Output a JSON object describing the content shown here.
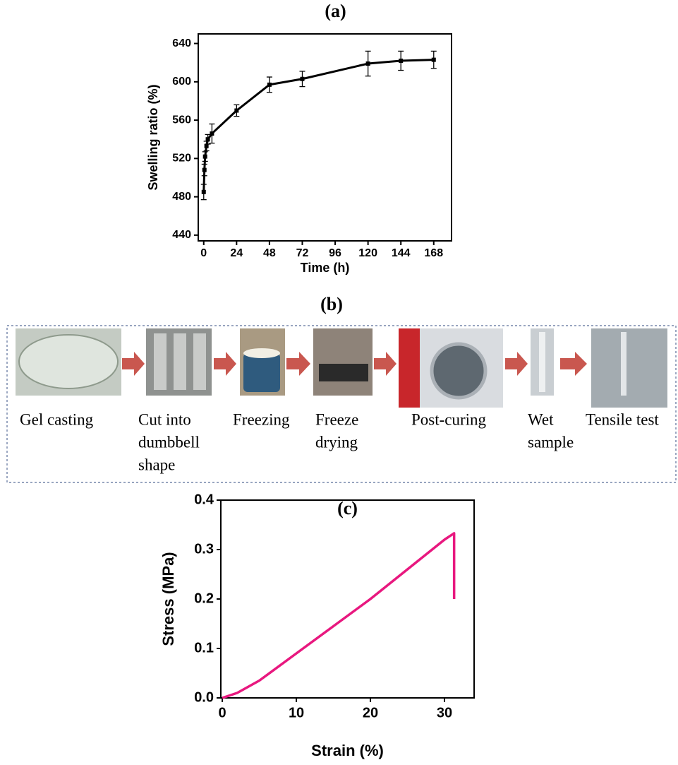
{
  "chart_data": [
    {
      "type": "line",
      "title": "(a)",
      "x_label": "Time (h)",
      "y_label": "Swelling ratio (%)",
      "x": [
        0,
        0.5,
        1,
        2,
        3,
        6,
        24,
        48,
        72,
        120,
        144,
        168
      ],
      "series": [
        {
          "color": "#000000",
          "values": [
            485,
            508,
            522,
            533,
            540,
            546,
            570,
            597,
            603,
            619,
            622,
            623
          ],
          "errors": [
            8,
            6,
            5,
            5,
            5,
            10,
            6,
            8,
            8,
            13,
            10,
            9
          ]
        }
      ],
      "xlim": [
        -4,
        181
      ],
      "ylim": [
        434,
        650
      ],
      "xticks": [
        0,
        24,
        48,
        72,
        96,
        120,
        144,
        168
      ],
      "yticks": [
        440,
        480,
        520,
        560,
        600,
        640
      ]
    },
    {
      "type": "line",
      "title": "(c)",
      "x_label": "Strain (%)",
      "y_label": "Stress (MPa)",
      "x": [
        0,
        2,
        5,
        10,
        15,
        20,
        25,
        30,
        31.3,
        31.3
      ],
      "series": [
        {
          "color": "#e8187f",
          "values": [
            0,
            0.01,
            0.035,
            0.09,
            0.145,
            0.2,
            0.26,
            0.32,
            0.333,
            0.2
          ]
        }
      ],
      "xlim": [
        -0.2,
        34
      ],
      "ylim": [
        0,
        0.4
      ],
      "xticks": [
        0,
        10,
        20,
        30
      ],
      "yticks": [
        {
          "value": 0,
          "label": "0.0"
        },
        0.1,
        0.2,
        0.3,
        0.4
      ]
    }
  ],
  "process": {
    "title": "(b)",
    "steps": [
      {
        "label": [
          "Gel casting"
        ]
      },
      {
        "label": [
          "Cut into",
          "dumbbell",
          "shape"
        ]
      },
      {
        "label": [
          "Freezing"
        ]
      },
      {
        "label": [
          "Freeze",
          "drying"
        ]
      },
      {
        "label": [
          "Post-curing"
        ]
      },
      {
        "label": [
          "Wet",
          "sample"
        ]
      },
      {
        "label": [
          "Tensile test"
        ]
      }
    ]
  }
}
